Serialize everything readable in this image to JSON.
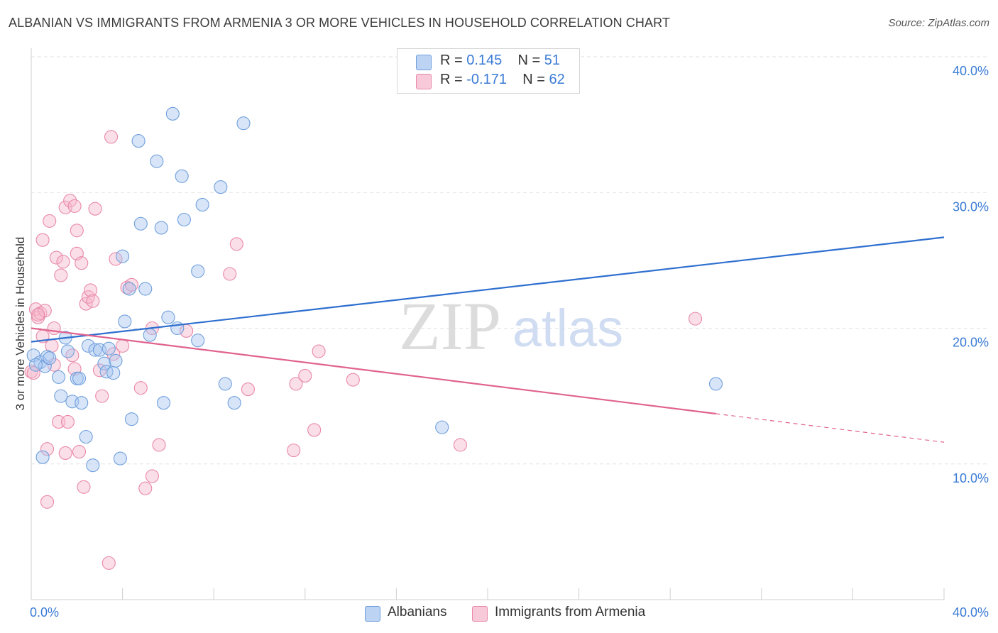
{
  "title": "ALBANIAN VS IMMIGRANTS FROM ARMENIA 3 OR MORE VEHICLES IN HOUSEHOLD CORRELATION CHART",
  "source": "Source: ZipAtlas.com",
  "watermark": {
    "zip": "ZIP",
    "atlas": "atlas"
  },
  "legend": {
    "rows": [
      {
        "r_label": "R =",
        "r_value": "0.145",
        "n_label": "N =",
        "n_value": "51"
      },
      {
        "r_label": "R =",
        "r_value": "-0.171",
        "n_label": "N =",
        "n_value": "62"
      }
    ]
  },
  "bottom_legend": {
    "albanians": "Albanians",
    "armenia": "Immigrants from Armenia"
  },
  "colors": {
    "blue_fill": "#a9c6ef",
    "blue_stroke": "#6f9fdc",
    "blue_line": "#2f6fcf",
    "pink_fill": "#f6b8cb",
    "pink_stroke": "#e888a8",
    "pink_line": "#e0628f",
    "axis_text": "#3a7bd5",
    "grid": "#e2e2e2"
  },
  "chart_data": {
    "type": "scatter",
    "title": "ALBANIAN VS IMMIGRANTS FROM ARMENIA 3 OR MORE VEHICLES IN HOUSEHOLD CORRELATION CHART",
    "ylabel": "3 or more Vehicles in Household",
    "xlabel": "",
    "xlim": [
      0,
      40
    ],
    "ylim": [
      0,
      40
    ],
    "x_tick_labels": [
      "0.0%",
      "40.0%"
    ],
    "y_ticks": [
      10,
      20,
      30,
      40
    ],
    "y_tick_labels": [
      "10.0%",
      "20.0%",
      "30.0%",
      "40.0%"
    ],
    "grid": true,
    "series": [
      {
        "name": "Albanians",
        "color": "#6f9fdc",
        "trend": {
          "x": [
            0,
            40
          ],
          "y": [
            19.0,
            26.7
          ],
          "style": "solid"
        },
        "points": [
          [
            0.1,
            18.0
          ],
          [
            0.4,
            17.5
          ],
          [
            0.6,
            17.2
          ],
          [
            0.7,
            17.9
          ],
          [
            0.8,
            17.8
          ],
          [
            0.5,
            10.5
          ],
          [
            1.2,
            16.4
          ],
          [
            1.3,
            15.0
          ],
          [
            1.5,
            19.3
          ],
          [
            1.6,
            18.3
          ],
          [
            1.8,
            14.6
          ],
          [
            2.0,
            16.3
          ],
          [
            2.1,
            16.3
          ],
          [
            2.2,
            14.5
          ],
          [
            2.4,
            12.0
          ],
          [
            2.5,
            18.7
          ],
          [
            2.7,
            9.9
          ],
          [
            2.8,
            18.4
          ],
          [
            3.0,
            18.4
          ],
          [
            3.2,
            17.4
          ],
          [
            3.3,
            16.8
          ],
          [
            3.4,
            18.5
          ],
          [
            3.6,
            16.7
          ],
          [
            3.7,
            17.6
          ],
          [
            3.9,
            10.4
          ],
          [
            4.0,
            25.3
          ],
          [
            4.1,
            20.5
          ],
          [
            4.3,
            22.9
          ],
          [
            4.4,
            13.3
          ],
          [
            4.7,
            33.8
          ],
          [
            4.8,
            27.7
          ],
          [
            5.0,
            22.9
          ],
          [
            5.2,
            19.5
          ],
          [
            5.5,
            32.3
          ],
          [
            5.7,
            27.4
          ],
          [
            5.8,
            14.5
          ],
          [
            6.0,
            20.8
          ],
          [
            6.2,
            35.8
          ],
          [
            6.4,
            20.0
          ],
          [
            6.6,
            31.2
          ],
          [
            6.7,
            28.0
          ],
          [
            7.3,
            24.2
          ],
          [
            7.3,
            19.1
          ],
          [
            7.5,
            29.1
          ],
          [
            8.3,
            30.4
          ],
          [
            8.5,
            15.9
          ],
          [
            8.9,
            14.5
          ],
          [
            9.3,
            35.1
          ],
          [
            18.0,
            12.7
          ],
          [
            30.0,
            15.9
          ],
          [
            0.2,
            17.3
          ]
        ]
      },
      {
        "name": "Immigrants from Armenia",
        "color": "#e888a8",
        "trend": {
          "x": [
            0,
            30
          ],
          "y": [
            20.0,
            13.7
          ],
          "style": "solid",
          "dashed_extension": {
            "x": [
              30,
              40
            ],
            "y": [
              13.7,
              11.6
            ]
          }
        },
        "points": [
          [
            0.0,
            16.8
          ],
          [
            0.2,
            21.4
          ],
          [
            0.3,
            20.8
          ],
          [
            0.4,
            21.1
          ],
          [
            0.5,
            19.4
          ],
          [
            0.5,
            26.5
          ],
          [
            0.6,
            21.3
          ],
          [
            0.7,
            11.1
          ],
          [
            0.7,
            7.2
          ],
          [
            0.8,
            27.9
          ],
          [
            0.9,
            18.7
          ],
          [
            1.0,
            17.3
          ],
          [
            1.0,
            20.0
          ],
          [
            1.1,
            25.2
          ],
          [
            1.2,
            13.1
          ],
          [
            1.3,
            23.9
          ],
          [
            1.4,
            24.9
          ],
          [
            1.5,
            10.8
          ],
          [
            1.5,
            28.9
          ],
          [
            1.6,
            13.1
          ],
          [
            1.7,
            29.4
          ],
          [
            1.8,
            18.0
          ],
          [
            1.9,
            17.0
          ],
          [
            2.0,
            25.5
          ],
          [
            2.0,
            27.2
          ],
          [
            2.1,
            10.9
          ],
          [
            2.2,
            24.8
          ],
          [
            2.3,
            8.3
          ],
          [
            2.4,
            21.8
          ],
          [
            2.5,
            22.3
          ],
          [
            2.6,
            22.8
          ],
          [
            2.7,
            22.0
          ],
          [
            2.8,
            28.8
          ],
          [
            3.0,
            16.9
          ],
          [
            3.1,
            15.0
          ],
          [
            3.4,
            2.7
          ],
          [
            3.5,
            34.1
          ],
          [
            3.6,
            18.1
          ],
          [
            3.7,
            25.1
          ],
          [
            4.0,
            18.7
          ],
          [
            4.2,
            23.0
          ],
          [
            4.4,
            23.2
          ],
          [
            4.8,
            15.6
          ],
          [
            5.0,
            8.2
          ],
          [
            5.3,
            20.0
          ],
          [
            5.3,
            9.1
          ],
          [
            5.6,
            11.4
          ],
          [
            6.8,
            19.8
          ],
          [
            8.7,
            24.0
          ],
          [
            9.0,
            26.2
          ],
          [
            9.5,
            15.5
          ],
          [
            11.5,
            11.0
          ],
          [
            11.6,
            15.9
          ],
          [
            12.0,
            16.5
          ],
          [
            12.4,
            12.5
          ],
          [
            12.6,
            18.3
          ],
          [
            14.1,
            16.2
          ],
          [
            18.8,
            11.4
          ],
          [
            29.1,
            20.7
          ],
          [
            0.1,
            16.7
          ],
          [
            1.9,
            29.0
          ],
          [
            0.3,
            21.0
          ]
        ]
      }
    ]
  }
}
